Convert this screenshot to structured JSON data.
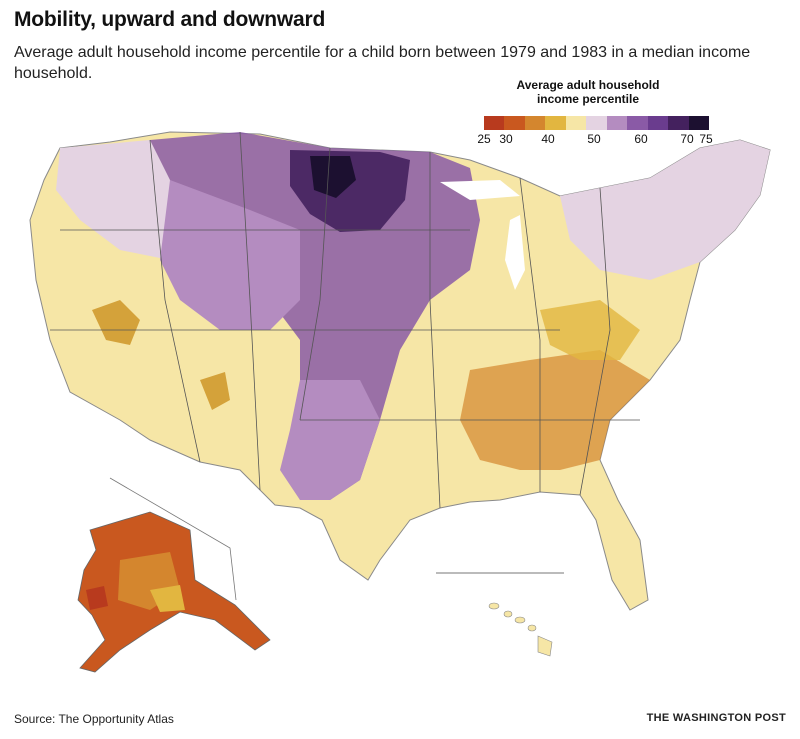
{
  "title": "Mobility, upward and downward",
  "subtitle": "Average adult household income percentile for a child born between 1979 and 1983 in a median income household.",
  "legend": {
    "title": "Average adult household\nincome percentile",
    "colors": [
      "#b83a1e",
      "#c9581f",
      "#d4862e",
      "#e2b640",
      "#f6e6a6",
      "#e4d3e2",
      "#b48cc0",
      "#8a5aa6",
      "#6a3c8e",
      "#44215e",
      "#1c1030"
    ],
    "ticks": [
      "25",
      "30",
      "40",
      "50",
      "60",
      "70",
      "75"
    ]
  },
  "source": "Source: The Opportunity Atlas",
  "credit": "THE WASHINGTON POST"
}
